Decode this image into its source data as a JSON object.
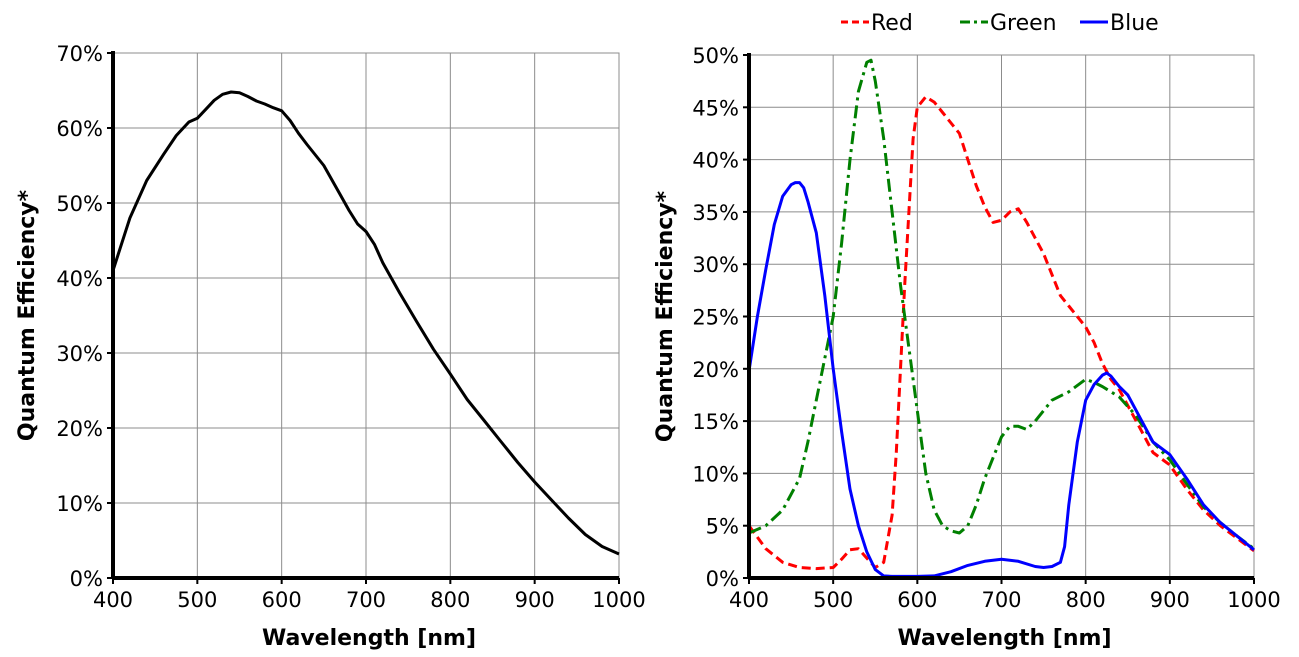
{
  "chart_data": [
    {
      "type": "line",
      "title": "",
      "xlabel": "Wavelength [nm]",
      "ylabel": "Quantum Efficiency*",
      "xlim": [
        400,
        1000
      ],
      "ylim": [
        0,
        70
      ],
      "grid": true,
      "legend": "none",
      "x_ticks": [
        400,
        500,
        600,
        700,
        800,
        900,
        1000
      ],
      "x_tick_labels": [
        "400",
        "500",
        "600",
        "700",
        "800",
        "900",
        "1000"
      ],
      "y_ticks": [
        0,
        10,
        20,
        30,
        40,
        50,
        60,
        70
      ],
      "y_tick_labels": [
        "0%",
        "10%",
        "20%",
        "30%",
        "40%",
        "50%",
        "60%",
        "70%"
      ],
      "series": [
        {
          "color": "#000000",
          "dash": "solid",
          "x": [
            400,
            420,
            440,
            460,
            475,
            490,
            500,
            510,
            520,
            530,
            540,
            550,
            560,
            570,
            580,
            590,
            600,
            610,
            620,
            630,
            650,
            670,
            680,
            690,
            700,
            710,
            720,
            740,
            760,
            780,
            800,
            820,
            840,
            860,
            880,
            900,
            920,
            940,
            960,
            980,
            1000
          ],
          "y": [
            41,
            48,
            53,
            56.5,
            59,
            60.8,
            61.3,
            62.5,
            63.7,
            64.5,
            64.8,
            64.7,
            64.2,
            63.6,
            63.2,
            62.7,
            62.3,
            61,
            59.3,
            57.8,
            55,
            51,
            49,
            47.2,
            46.2,
            44.5,
            42,
            38,
            34.2,
            30.5,
            27.2,
            23.8,
            21,
            18.2,
            15.4,
            12.8,
            10.4,
            8,
            5.8,
            4.2,
            3.2
          ]
        }
      ]
    },
    {
      "type": "line",
      "title": "",
      "xlabel": "Wavelength [nm]",
      "ylabel": "Quantum Efficiency*",
      "xlim": [
        400,
        1000
      ],
      "ylim": [
        0,
        50
      ],
      "grid": true,
      "legend": "top",
      "x_ticks": [
        400,
        500,
        600,
        700,
        800,
        900,
        1000
      ],
      "x_tick_labels": [
        "400",
        "500",
        "600",
        "700",
        "800",
        "900",
        "1000"
      ],
      "y_ticks": [
        0,
        5,
        10,
        15,
        20,
        25,
        30,
        35,
        40,
        45,
        50
      ],
      "y_tick_labels": [
        "0%",
        "5%",
        "10%",
        "15%",
        "20%",
        "25%",
        "30%",
        "35%",
        "40%",
        "45%",
        "50%"
      ],
      "series": [
        {
          "name": "Red",
          "color": "#ff0000",
          "dash": "dashed",
          "x": [
            400,
            420,
            440,
            460,
            480,
            500,
            510,
            520,
            530,
            540,
            550,
            560,
            570,
            575,
            580,
            585,
            590,
            595,
            600,
            610,
            620,
            630,
            640,
            650,
            660,
            670,
            680,
            690,
            700,
            710,
            720,
            730,
            740,
            750,
            760,
            770,
            780,
            790,
            800,
            810,
            820,
            830,
            840,
            860,
            880,
            900,
            920,
            940,
            960,
            980,
            1000
          ],
          "y": [
            5,
            2.8,
            1.5,
            1,
            0.9,
            1,
            1.8,
            2.7,
            2.8,
            1.9,
            1,
            1.5,
            6,
            12,
            20,
            28,
            35,
            42,
            45,
            46,
            45.5,
            44.5,
            43.5,
            42.5,
            40,
            37.5,
            35.5,
            34,
            34.2,
            35,
            35.3,
            34,
            32.5,
            31,
            29,
            27,
            26,
            25,
            24,
            22.5,
            20.5,
            19,
            18,
            15,
            12,
            10.8,
            8.5,
            6.5,
            5,
            3.8,
            2.6
          ]
        },
        {
          "name": "Green",
          "color": "#008000",
          "dash": "dashdot",
          "x": [
            400,
            420,
            440,
            460,
            470,
            480,
            490,
            500,
            510,
            520,
            530,
            540,
            545,
            550,
            560,
            570,
            580,
            590,
            600,
            610,
            620,
            630,
            640,
            650,
            660,
            670,
            680,
            690,
            700,
            710,
            720,
            730,
            740,
            750,
            760,
            780,
            800,
            810,
            820,
            830,
            840,
            860,
            880,
            900,
            920,
            940,
            960,
            980,
            1000
          ],
          "y": [
            4.3,
            5,
            6.5,
            9.5,
            13,
            17,
            21,
            25,
            32,
            40,
            46.5,
            49.3,
            49.5,
            47.5,
            42,
            35,
            28,
            22,
            16,
            10,
            6.5,
            5,
            4.5,
            4.3,
            5,
            7,
            9.5,
            11.5,
            13.5,
            14.5,
            14.5,
            14.2,
            15,
            16,
            17,
            17.8,
            19,
            18.7,
            18.3,
            17.8,
            17.3,
            15.5,
            13,
            11.3,
            9,
            6.8,
            5.3,
            4,
            2.8
          ]
        },
        {
          "name": "Blue",
          "color": "#0000ff",
          "dash": "solid",
          "x": [
            400,
            410,
            420,
            430,
            440,
            450,
            455,
            460,
            465,
            470,
            480,
            490,
            500,
            510,
            520,
            530,
            540,
            550,
            560,
            570,
            580,
            600,
            620,
            640,
            660,
            680,
            700,
            720,
            740,
            750,
            760,
            770,
            775,
            780,
            790,
            800,
            810,
            820,
            825,
            830,
            840,
            850,
            860,
            880,
            900,
            920,
            940,
            960,
            980,
            1000
          ],
          "y": [
            19.8,
            25,
            29.5,
            33.8,
            36.5,
            37.6,
            37.8,
            37.8,
            37.3,
            36,
            33,
            27,
            20,
            14,
            8.5,
            5,
            2.5,
            0.8,
            0.2,
            0.15,
            0.15,
            0.15,
            0.2,
            0.6,
            1.2,
            1.6,
            1.8,
            1.6,
            1.1,
            1,
            1.1,
            1.5,
            3,
            7,
            13,
            17,
            18.5,
            19.4,
            19.6,
            19.3,
            18.3,
            17.5,
            16,
            13,
            11.8,
            9.5,
            7,
            5.3,
            4,
            2.7
          ]
        }
      ]
    }
  ]
}
